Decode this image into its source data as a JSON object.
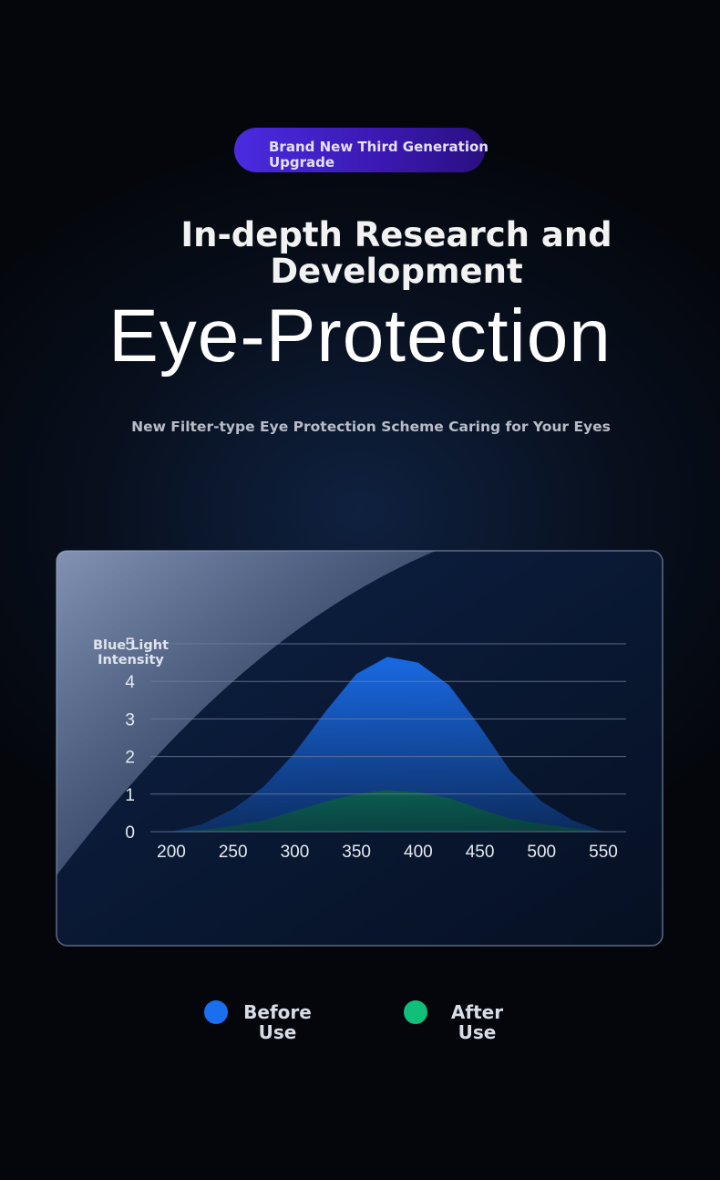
{
  "badge": "Brand New Third Generation Upgrade",
  "heading": "In-depth Research and Development",
  "title": "Eye-Protection",
  "subtitle": "New Filter-type Eye Protection Scheme Caring for Your Eyes",
  "chart_data": {
    "type": "area",
    "y_label": "Blue Light Intensity",
    "x": [
      200,
      225,
      250,
      275,
      300,
      325,
      350,
      375,
      400,
      425,
      450,
      475,
      500,
      525,
      550
    ],
    "series": [
      {
        "name": "Before Use",
        "color": "#1a6ff0",
        "values": [
          0,
          0.2,
          0.6,
          1.2,
          2.1,
          3.2,
          4.2,
          4.65,
          4.5,
          3.9,
          2.8,
          1.6,
          0.8,
          0.3,
          0
        ]
      },
      {
        "name": "After Use",
        "color": "#0fbf7a",
        "values": [
          0,
          0.05,
          0.15,
          0.3,
          0.55,
          0.8,
          1.0,
          1.1,
          1.05,
          0.9,
          0.6,
          0.35,
          0.2,
          0.1,
          0
        ]
      }
    ],
    "xlim": [
      200,
      550
    ],
    "xticks": [
      200,
      250,
      300,
      350,
      400,
      450,
      500,
      550
    ],
    "ylim": [
      0,
      5
    ],
    "yticks": [
      0,
      1,
      2,
      3,
      4,
      5
    ],
    "grid": true
  }
}
